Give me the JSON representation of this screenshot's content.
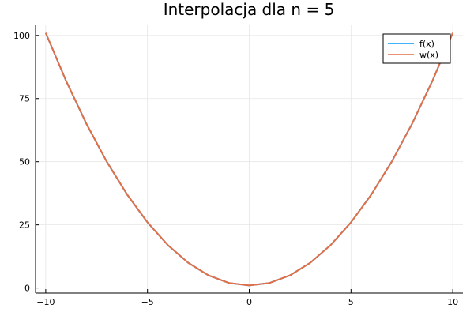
{
  "chart_data": {
    "type": "line",
    "title": "Interpolacja dla n = 5",
    "xlabel": "",
    "ylabel": "",
    "xlim": [
      -10.5,
      10.5
    ],
    "ylim": [
      -2,
      104
    ],
    "xticks": [
      -10,
      -5,
      0,
      5,
      10
    ],
    "xtick_labels": [
      "−10",
      "−5",
      "0",
      "5",
      "10"
    ],
    "yticks": [
      0,
      25,
      50,
      75,
      100
    ],
    "ytick_labels": [
      "0",
      "25",
      "50",
      "75",
      "100"
    ],
    "grid": true,
    "legend_position": "top-right",
    "x": [
      -10,
      -9,
      -8,
      -7,
      -6,
      -5,
      -4,
      -3,
      -2,
      -1,
      0,
      1,
      2,
      3,
      4,
      5,
      6,
      7,
      8,
      9,
      10
    ],
    "series": [
      {
        "name": "f(x)",
        "color": "#009AFA",
        "values": [
          101,
          82,
          65,
          50,
          37,
          26,
          17,
          10,
          5,
          2,
          1,
          2,
          5,
          10,
          17,
          26,
          37,
          50,
          65,
          82,
          101
        ]
      },
      {
        "name": "w(x)",
        "color": "#E26F46",
        "values": [
          101,
          82,
          65,
          50,
          37,
          26,
          17,
          10,
          5,
          2,
          1,
          2,
          5,
          10,
          17,
          26,
          37,
          50,
          65,
          82,
          101
        ]
      }
    ]
  }
}
